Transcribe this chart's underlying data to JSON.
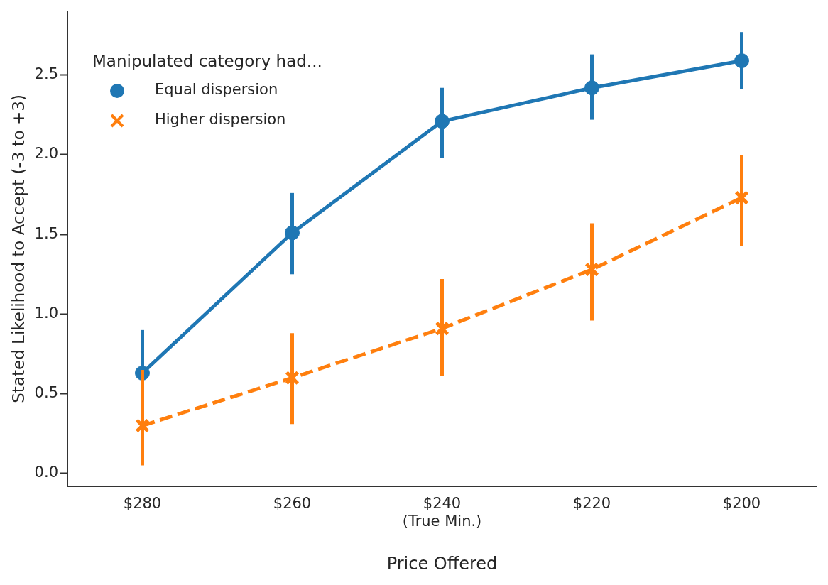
{
  "chart_data": {
    "type": "line",
    "xlabel": "Price Offered",
    "ylabel": "Stated Likelihood to Accept (-3 to +3)",
    "legend_title": "Manipulated category had...",
    "categories": [
      "$280",
      "$260",
      "$240\n(True Min.)",
      "$220",
      "$200"
    ],
    "series": [
      {
        "name": "Equal dispersion",
        "color": "#1f77b4",
        "marker": "circle",
        "line_style": "solid",
        "values": [
          0.63,
          1.51,
          2.21,
          2.42,
          2.59
        ],
        "errors": [
          [
            0.36,
            0.9
          ],
          [
            1.25,
            1.76
          ],
          [
            1.98,
            2.42
          ],
          [
            2.22,
            2.63
          ],
          [
            2.41,
            2.77
          ]
        ]
      },
      {
        "name": "Higher dispersion",
        "color": "#ff7f0e",
        "marker": "cross",
        "line_style": "dashed",
        "values": [
          0.3,
          0.6,
          0.91,
          1.28,
          1.73
        ],
        "errors": [
          [
            0.05,
            0.65
          ],
          [
            0.31,
            0.88
          ],
          [
            0.61,
            1.22
          ],
          [
            0.96,
            1.57
          ],
          [
            1.43,
            2.0
          ]
        ]
      }
    ],
    "ylim": [
      -0.08,
      2.9
    ],
    "yticks": [
      {
        "value": 0,
        "label": "0.0"
      },
      0.5,
      {
        "value": 1,
        "label": "1.0"
      },
      1.5,
      {
        "value": 2,
        "label": "2.0"
      },
      2.5
    ],
    "grid": false,
    "legend": "top left"
  }
}
